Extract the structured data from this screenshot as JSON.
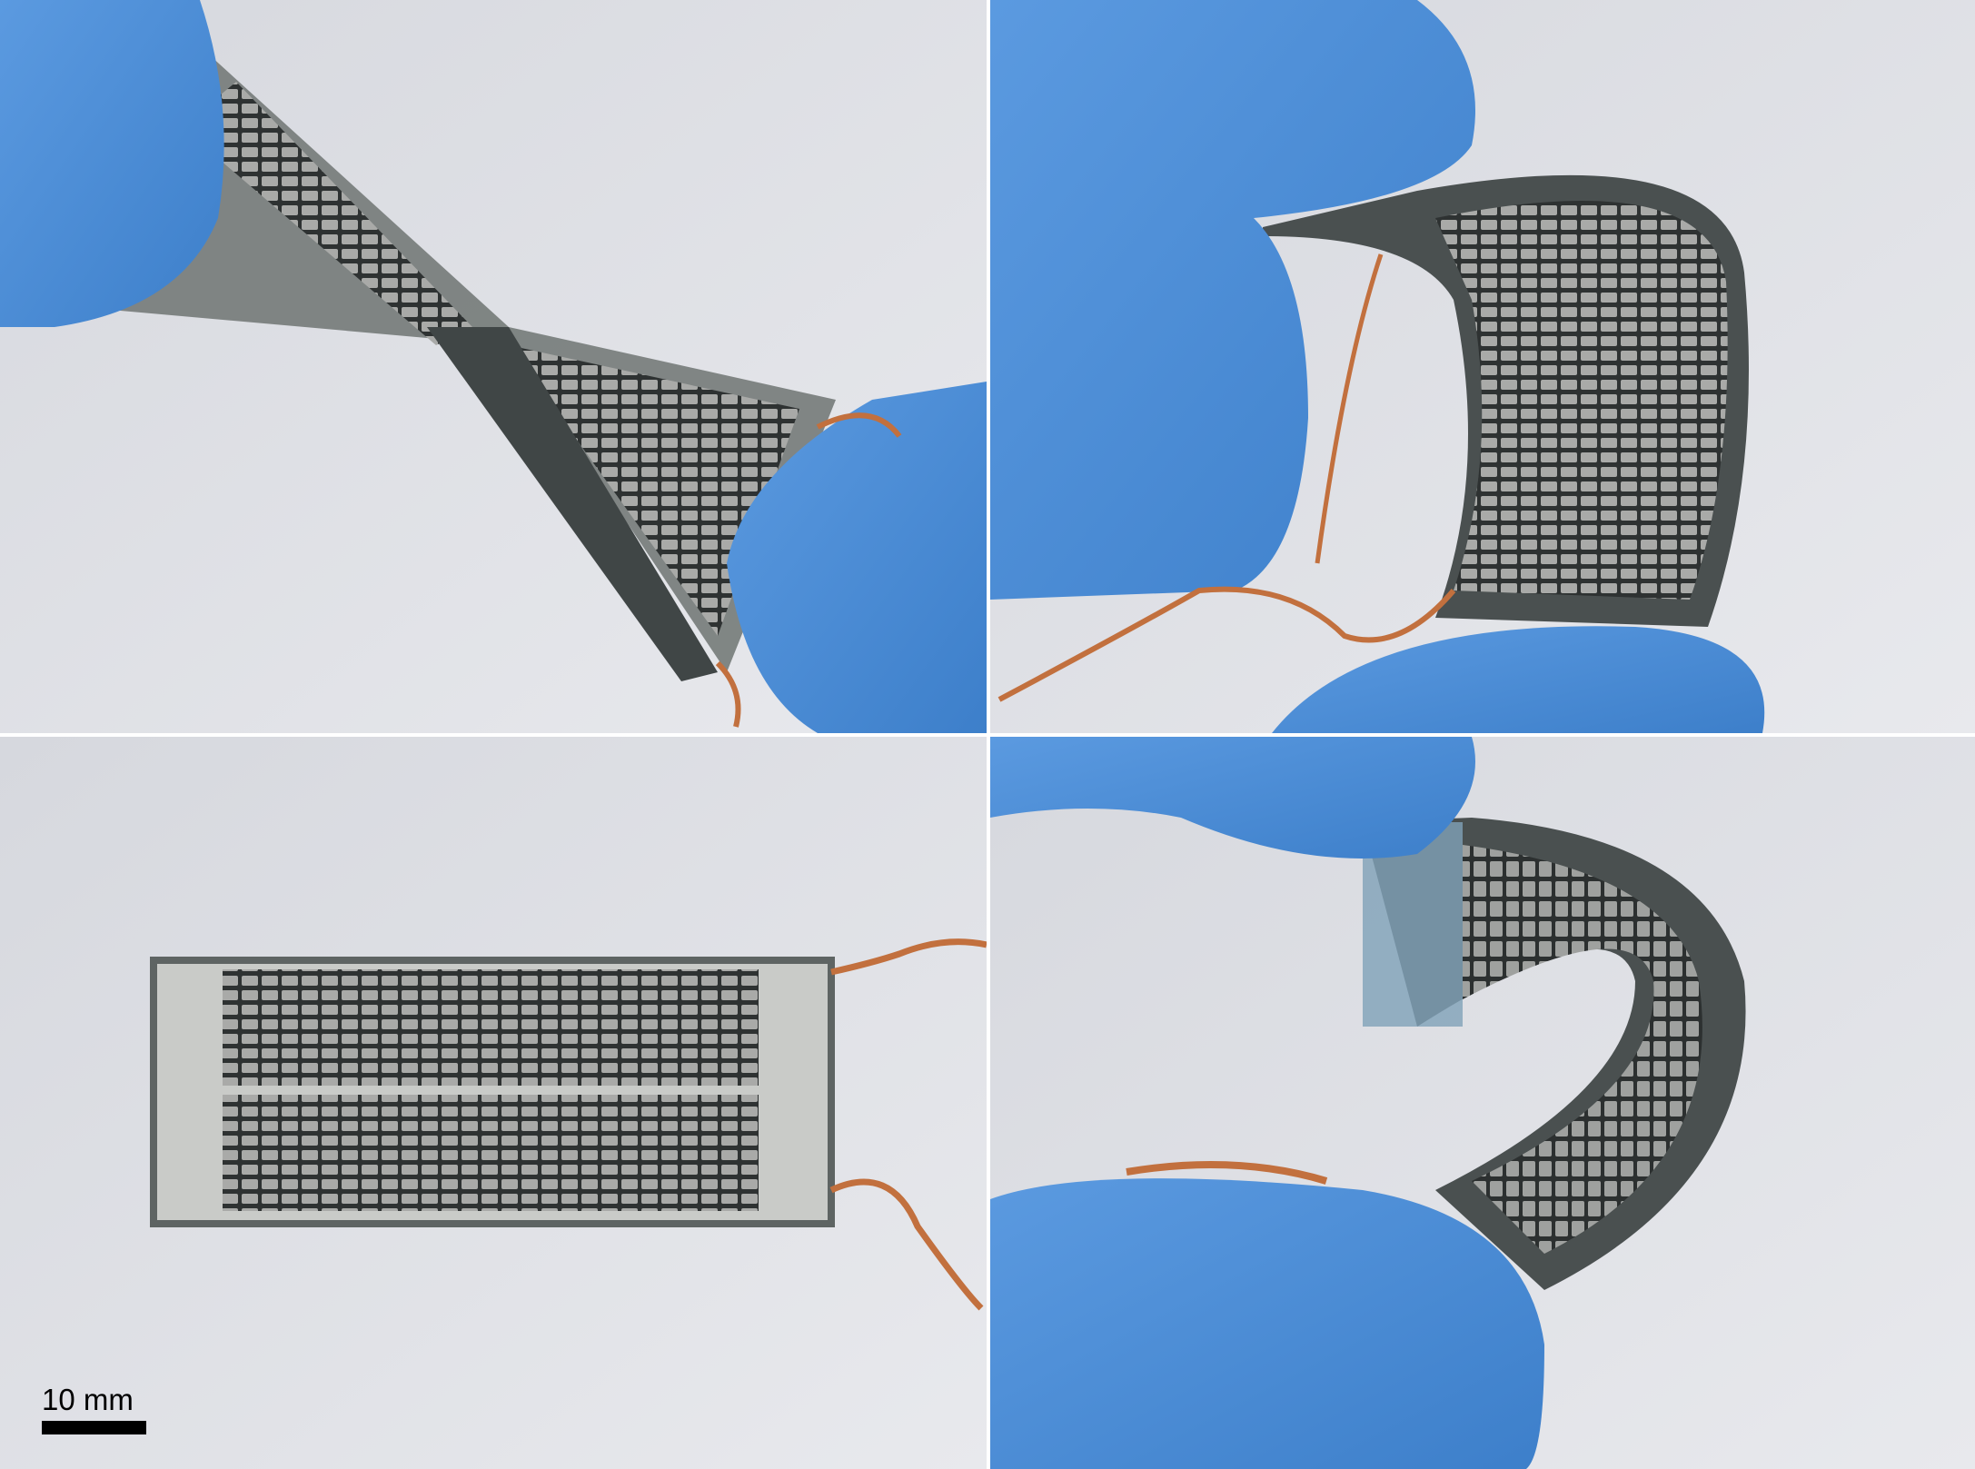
{
  "scale_bar": {
    "label": "10 mm"
  }
}
